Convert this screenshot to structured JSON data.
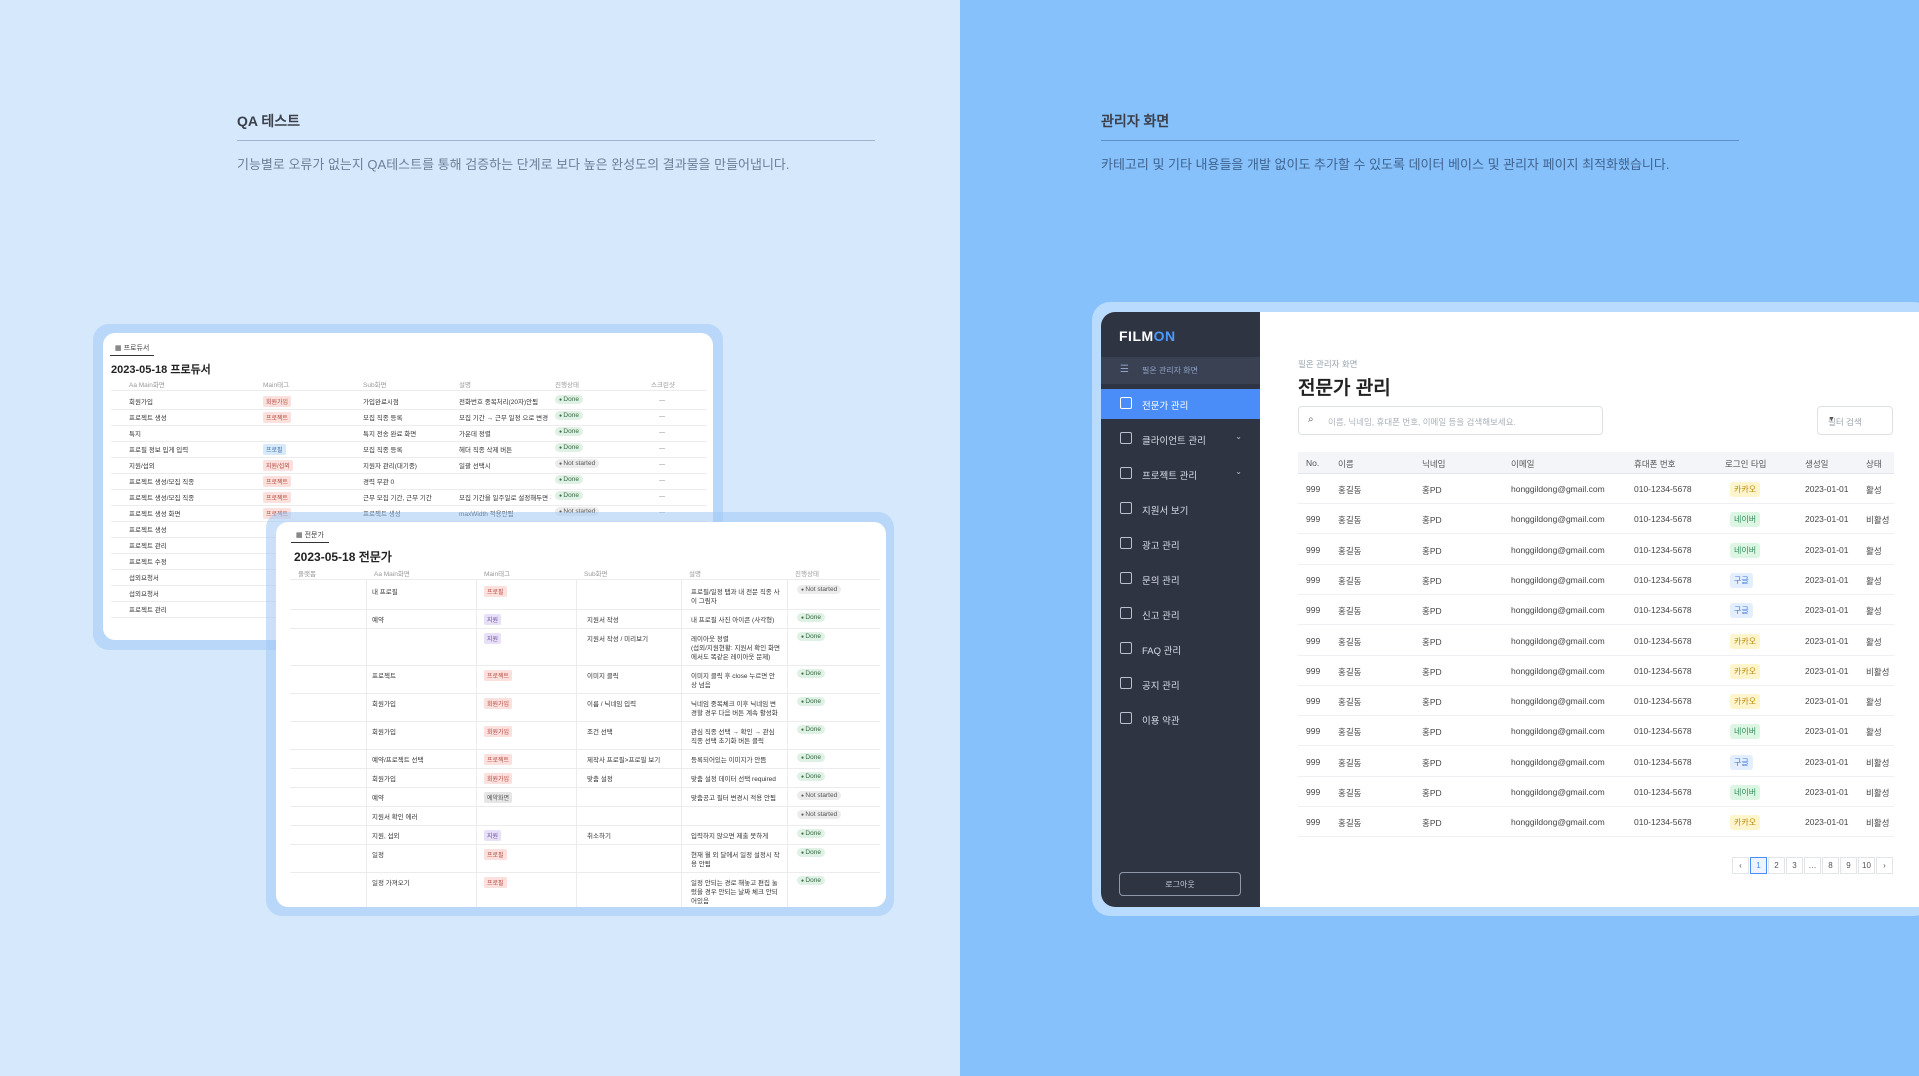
{
  "left": {
    "section_title": "QA 테스트",
    "section_desc": "기능별로 오류가 없는지 QA테스트를 통해 검증하는 단계로 보다 높은 완성도의 결과물을 만들어냅니다."
  },
  "right": {
    "section_title": "관리자 화면",
    "section_desc": "카테고리 및 기타 내용들을 개발 없이도 추가할 수 있도록 데이터 베이스 및 관리자 페이지 최적화했습니다."
  },
  "back_card": {
    "tab": "프로듀서",
    "title": "2023-05-18 프로듀서",
    "headers": [
      "Aa Main화면",
      "Main태그",
      "Sub화면",
      "설명",
      "진행상태",
      "스크린샷"
    ],
    "rows": [
      {
        "main": "회원가입",
        "tag": "회원가입",
        "tag_color": "red",
        "sub": "가입완료시점",
        "desc": "전화번호 중복처리(20자)안됨",
        "status": "Done"
      },
      {
        "main": "프로젝트 생성",
        "tag": "프로젝트",
        "tag_color": "red",
        "sub": "모집 직종 등록",
        "desc": "모집 기간 → 근무 일정 으로 변경",
        "status": "Done"
      },
      {
        "main": "특지",
        "tag": "",
        "tag_color": "",
        "sub": "특지 전송 완료 화면",
        "desc": "가운데 정렬",
        "status": "Done"
      },
      {
        "main": "프로필 정보 입게 입력",
        "tag": "프로필",
        "tag_color": "blue",
        "sub": "모집 직종 등록",
        "desc": "헤더 직종 삭제 버튼",
        "status": "Done"
      },
      {
        "main": "지원/섭외",
        "tag": "지원/섭외",
        "tag_color": "red",
        "sub": "지원자 관리(대기중)",
        "desc": "일괄 선택시",
        "status": "Not started"
      },
      {
        "main": "프로젝트 생성/모집 직종",
        "tag": "프로젝트",
        "tag_color": "red",
        "sub": "경력 무관 0",
        "desc": "",
        "status": "Done"
      },
      {
        "main": "프로젝트 생성/모집 직종",
        "tag": "프로젝트",
        "tag_color": "red",
        "sub": "근무 모집 기간, 근무 기간",
        "desc": "모집 기간을 일주일로 설정해두면 긴",
        "status": "Done"
      },
      {
        "main": "프로젝트 생성 화면",
        "tag": "프로젝트",
        "tag_color": "red",
        "sub": "프로젝트 생성",
        "desc": "maxWidth 적용안됨",
        "status": "Not started"
      },
      {
        "main": "프로젝트 생성",
        "tag": "",
        "tag_color": "",
        "sub": "",
        "desc": "",
        "status": ""
      },
      {
        "main": "프로젝트 관리",
        "tag": "",
        "tag_color": "",
        "sub": "",
        "desc": "",
        "status": ""
      },
      {
        "main": "프로젝트 수정",
        "tag": "",
        "tag_color": "",
        "sub": "",
        "desc": "",
        "status": ""
      },
      {
        "main": "섭외요청서",
        "tag": "",
        "tag_color": "",
        "sub": "",
        "desc": "",
        "status": ""
      },
      {
        "main": "섭외요청서",
        "tag": "",
        "tag_color": "",
        "sub": "",
        "desc": "",
        "status": ""
      },
      {
        "main": "프로젝트 관리",
        "tag": "",
        "tag_color": "",
        "sub": "",
        "desc": "",
        "status": ""
      }
    ]
  },
  "front_card": {
    "tab": "전문가",
    "title": "2023-05-18 전문가",
    "headers": [
      "플랫폼",
      "Aa Main화면",
      "Main태그",
      "Sub화면",
      "설명",
      "진행상태"
    ],
    "rows": [
      {
        "main": "내 프로필",
        "tag": "프로필",
        "tag_color": "red",
        "sub": "",
        "desc": [
          "프로필/일정 탭과 내 전문 직종 사",
          "이 그림자"
        ],
        "status": "Not started"
      },
      {
        "main": "예약",
        "tag": "지원",
        "tag_color": "purple",
        "sub": "지원서 작성",
        "desc": [
          "내 프로필 사진 아이콘 (사각형)"
        ],
        "status": "Done"
      },
      {
        "main": "",
        "tag": "지원",
        "tag_color": "purple",
        "sub": "지원서 작성 / 미리보기",
        "desc": [
          "레이아웃 정렬",
          "(섭외/지원현황: 지원서 확인 화면",
          "에서도 똑같은 레이아웃 문제)"
        ],
        "status": "Done"
      },
      {
        "main": "프로젝트",
        "tag": "프로젝트",
        "tag_color": "red",
        "sub": "이미지 클릭",
        "desc": [
          "이미지 클릭 후 close 누르면 안",
          "상 넘음"
        ],
        "status": "Done"
      },
      {
        "main": "회원가입",
        "tag": "회원가입",
        "tag_color": "red",
        "sub": "이름 / 닉네임 입력",
        "desc": [
          "닉네임 중복체크 이후 닉네임 변",
          "경할 경우 다음 버튼 계속 활성화"
        ],
        "status": "Done"
      },
      {
        "main": "회원가입",
        "tag": "회원가입",
        "tag_color": "red",
        "sub": "조건 선택",
        "desc": [
          "관심 직종 선택 → 확인 → 관심",
          "직종 선택 초기화 버튼 클릭"
        ],
        "status": "Done"
      },
      {
        "main": "예약/프로젝트 선택",
        "tag": "프로젝트",
        "tag_color": "red",
        "sub": "제작사 프로필>프로필 보기",
        "desc": [
          "등록되어있는 이미지가 안뜸"
        ],
        "status": "Done"
      },
      {
        "main": "회원가입",
        "tag": "회원가입",
        "tag_color": "red",
        "sub": "맞춤 설정",
        "desc": [
          "맞춤 설정 데이터 선택 required"
        ],
        "status": "Done"
      },
      {
        "main": "예약",
        "tag": "예약화면",
        "tag_color": "gray",
        "sub": "",
        "desc": [
          "맞춤공고 필터 변경시 적용 안됨"
        ],
        "status": "Not started"
      },
      {
        "main": "지원서 확인 에러",
        "tag": "",
        "tag_color": "",
        "sub": "",
        "desc": [
          ""
        ],
        "status": "Not started"
      },
      {
        "main": "지원, 섭외",
        "tag": "지원",
        "tag_color": "purple",
        "sub": "취소하기",
        "desc": [
          "입력하지 않으면 제출 못하게"
        ],
        "status": "Done"
      },
      {
        "main": "일정",
        "tag": "프로필",
        "tag_color": "red",
        "sub": "",
        "desc": [
          "현재 월 외 달에서 일정 설정시 작",
          "용 안됨"
        ],
        "status": "Done"
      },
      {
        "main": "일정 가져오기",
        "tag": "프로필",
        "tag_color": "red",
        "sub": "",
        "desc": [
          "일정 안되는 경로 해놓고 편집 눌",
          "렀을 경우 안되는 날짜 체크 안되",
          "어있음"
        ],
        "status": "Done"
      }
    ]
  },
  "admin": {
    "logo_main": "FILM",
    "logo_accent": "ON",
    "sub_title": "필온 관리자 화면",
    "nav": [
      {
        "label": "전문가 관리",
        "active": true,
        "chevron": false
      },
      {
        "label": "클라이언트 관리",
        "active": false,
        "chevron": true
      },
      {
        "label": "프로젝트 관리",
        "active": false,
        "chevron": true
      },
      {
        "label": "지원서 보기",
        "active": false,
        "chevron": false
      },
      {
        "label": "광고 관리",
        "active": false,
        "chevron": false
      },
      {
        "label": "문의 관리",
        "active": false,
        "chevron": false
      },
      {
        "label": "신고 관리",
        "active": false,
        "chevron": false
      },
      {
        "label": "FAQ 관리",
        "active": false,
        "chevron": false
      },
      {
        "label": "공지 관리",
        "active": false,
        "chevron": false
      },
      {
        "label": "이용 약관",
        "active": false,
        "chevron": false
      }
    ],
    "logout": "로그아웃",
    "breadcrumb": "필온 관리자 화면",
    "page_title": "전문가 관리",
    "search_placeholder": "이름, 닉네임, 휴대폰 번호, 이메일 등을 검색해보세요.",
    "filter_label": "필터 검색",
    "columns": [
      "No.",
      "이름",
      "닉네임",
      "이메일",
      "휴대폰 번호",
      "로그인 타입",
      "생성일",
      "상태"
    ],
    "rows": [
      {
        "no": "999",
        "name": "홍길동",
        "nick": "홍PD",
        "email": "honggildong@gmail.com",
        "phone": "010-1234-5678",
        "login": "카카오",
        "date": "2023-01-01",
        "state": "활성"
      },
      {
        "no": "999",
        "name": "홍길동",
        "nick": "홍PD",
        "email": "honggildong@gmail.com",
        "phone": "010-1234-5678",
        "login": "네이버",
        "date": "2023-01-01",
        "state": "비활성"
      },
      {
        "no": "999",
        "name": "홍길동",
        "nick": "홍PD",
        "email": "honggildong@gmail.com",
        "phone": "010-1234-5678",
        "login": "네이버",
        "date": "2023-01-01",
        "state": "활성"
      },
      {
        "no": "999",
        "name": "홍길동",
        "nick": "홍PD",
        "email": "honggildong@gmail.com",
        "phone": "010-1234-5678",
        "login": "구글",
        "date": "2023-01-01",
        "state": "활성"
      },
      {
        "no": "999",
        "name": "홍길동",
        "nick": "홍PD",
        "email": "honggildong@gmail.com",
        "phone": "010-1234-5678",
        "login": "구글",
        "date": "2023-01-01",
        "state": "활성"
      },
      {
        "no": "999",
        "name": "홍길동",
        "nick": "홍PD",
        "email": "honggildong@gmail.com",
        "phone": "010-1234-5678",
        "login": "카카오",
        "date": "2023-01-01",
        "state": "활성"
      },
      {
        "no": "999",
        "name": "홍길동",
        "nick": "홍PD",
        "email": "honggildong@gmail.com",
        "phone": "010-1234-5678",
        "login": "카카오",
        "date": "2023-01-01",
        "state": "비활성"
      },
      {
        "no": "999",
        "name": "홍길동",
        "nick": "홍PD",
        "email": "honggildong@gmail.com",
        "phone": "010-1234-5678",
        "login": "카카오",
        "date": "2023-01-01",
        "state": "활성"
      },
      {
        "no": "999",
        "name": "홍길동",
        "nick": "홍PD",
        "email": "honggildong@gmail.com",
        "phone": "010-1234-5678",
        "login": "네이버",
        "date": "2023-01-01",
        "state": "활성"
      },
      {
        "no": "999",
        "name": "홍길동",
        "nick": "홍PD",
        "email": "honggildong@gmail.com",
        "phone": "010-1234-5678",
        "login": "구글",
        "date": "2023-01-01",
        "state": "비활성"
      },
      {
        "no": "999",
        "name": "홍길동",
        "nick": "홍PD",
        "email": "honggildong@gmail.com",
        "phone": "010-1234-5678",
        "login": "네이버",
        "date": "2023-01-01",
        "state": "비활성"
      },
      {
        "no": "999",
        "name": "홍길동",
        "nick": "홍PD",
        "email": "honggildong@gmail.com",
        "phone": "010-1234-5678",
        "login": "카카오",
        "date": "2023-01-01",
        "state": "비활성"
      }
    ],
    "login_colors": {
      "카카오": [
        "#fff5cc",
        "#b8860b"
      ],
      "네이버": [
        "#ddf5e3",
        "#2e8b57"
      ],
      "구글": [
        "#e3efff",
        "#3b73d9"
      ]
    },
    "pagination": [
      "‹",
      "1",
      "2",
      "3",
      "…",
      "8",
      "9",
      "10",
      "›"
    ],
    "current_page": "1"
  },
  "colors": {
    "left_bg": "#d6e8fc",
    "right_bg": "#86c1fb",
    "sidebar": "#2f3442",
    "accent": "#4b8df8",
    "tag_red_bg": "#fbe0dd",
    "tag_red_fg": "#b44a3e",
    "tag_blue_bg": "#d8e9fb",
    "tag_blue_fg": "#3b6ea8",
    "tag_purple_bg": "#e8e0f7",
    "tag_purple_fg": "#6a4fa8",
    "tag_gray_bg": "#e6e6e6",
    "tag_gray_fg": "#555555"
  }
}
